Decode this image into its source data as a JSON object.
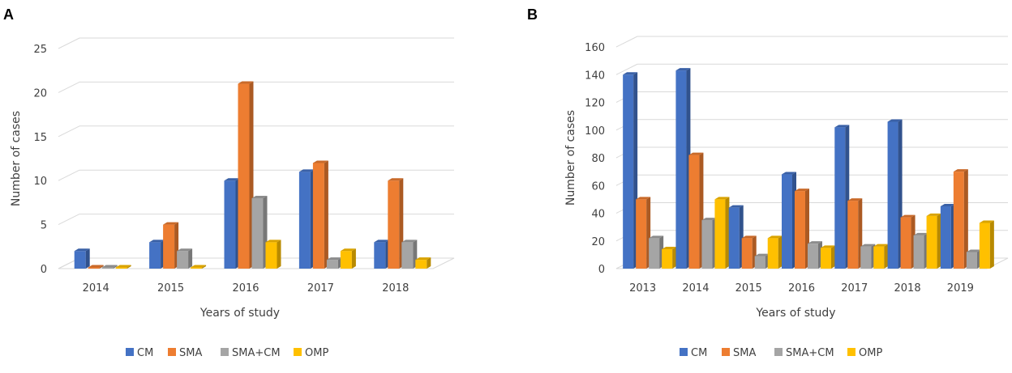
{
  "panels": [
    {
      "label": "A"
    },
    {
      "label": "B"
    }
  ],
  "chart_data": [
    {
      "type": "bar",
      "panel": "A",
      "categories": [
        "2014",
        "2015",
        "2016",
        "2017",
        "2018"
      ],
      "series": [
        {
          "name": "CM",
          "color": "#4472c4",
          "values": [
            2,
            3,
            10,
            11,
            3
          ]
        },
        {
          "name": "SMA",
          "color": "#ed7d31",
          "values": [
            0,
            5,
            21,
            12,
            10
          ]
        },
        {
          "name": "SMA+CM",
          "color": "#a5a5a5",
          "values": [
            0,
            2,
            8,
            1,
            3
          ]
        },
        {
          "name": "OMP",
          "color": "#ffc000",
          "values": [
            0,
            0,
            3,
            2,
            1
          ]
        }
      ],
      "xlabel": "Years of study",
      "ylabel": "Number of cases",
      "ylim": [
        0,
        25
      ],
      "yticks": [
        "0",
        "5",
        "10",
        "15",
        "20",
        "25"
      ],
      "legend": "bottom"
    },
    {
      "type": "bar",
      "panel": "B",
      "categories": [
        "2013",
        "2014",
        "2015",
        "2016",
        "2017",
        "2018",
        "2019"
      ],
      "series": [
        {
          "name": "CM",
          "color": "#4472c4",
          "values": [
            140,
            143,
            44,
            68,
            102,
            106,
            45
          ]
        },
        {
          "name": "SMA",
          "color": "#ed7d31",
          "values": [
            50,
            82,
            22,
            56,
            49,
            37,
            70
          ]
        },
        {
          "name": "SMA+CM",
          "color": "#a5a5a5",
          "values": [
            22,
            35,
            9,
            18,
            16,
            24,
            12
          ]
        },
        {
          "name": "OMP",
          "color": "#ffc000",
          "values": [
            14,
            50,
            22,
            15,
            16,
            38,
            33
          ]
        }
      ],
      "xlabel": "Years of study",
      "ylabel": "Number of cases",
      "ylim": [
        0,
        160
      ],
      "yticks": [
        "0",
        "20",
        "40",
        "60",
        "80",
        "100",
        "120",
        "140",
        "160"
      ],
      "legend": "bottom"
    }
  ]
}
